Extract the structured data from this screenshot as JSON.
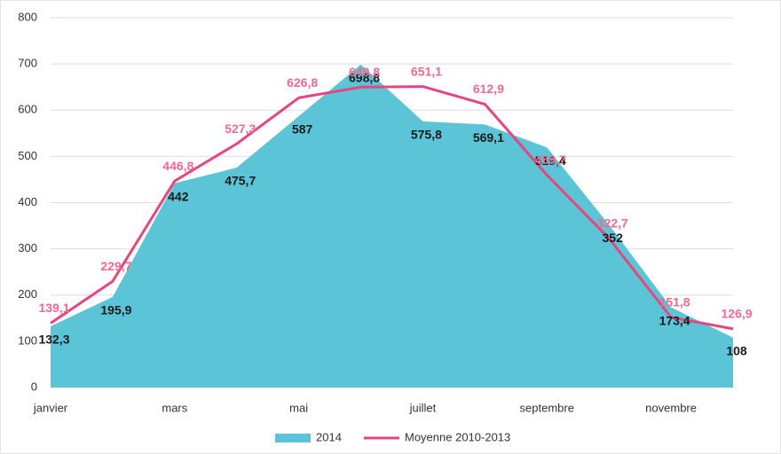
{
  "chart_data": {
    "type": "area",
    "categories": [
      "janvier",
      null,
      "mars",
      null,
      "mai",
      null,
      "juillet",
      null,
      "septembre",
      null,
      "novembre",
      null
    ],
    "series": [
      {
        "name": "2014",
        "type": "area",
        "color": "#5bc4d6",
        "values": [
          132.3,
          195.9,
          442,
          475.7,
          587,
          698.8,
          575.8,
          569.1,
          519.4,
          352,
          173.4,
          108
        ],
        "value_labels": [
          "132,3",
          "195,9",
          "442",
          "475,7",
          "587",
          "698,8",
          "575,8",
          "569,1",
          "519,4",
          "352",
          "173,4",
          "108"
        ],
        "label_color": "#1a1a1a"
      },
      {
        "name": "Moyenne 2010-2013",
        "type": "line",
        "color": "#e8457f",
        "values": [
          139.1,
          229.7,
          446.8,
          527.3,
          626.8,
          649.8,
          651.1,
          612.9,
          459.7,
          322.7,
          151.8,
          126.9
        ],
        "value_labels": [
          "139,1",
          "229,7",
          "446,8",
          "527,3",
          "626,8",
          "649,8",
          "651,1",
          "612,9",
          "459,7",
          "322,7",
          "151,8",
          "126,9"
        ],
        "label_color": "#f06a90"
      }
    ],
    "ylim": [
      0,
      800
    ],
    "yticks": [
      0,
      100,
      200,
      300,
      400,
      500,
      600,
      700,
      800
    ],
    "grid": true,
    "legend": "bottom"
  }
}
